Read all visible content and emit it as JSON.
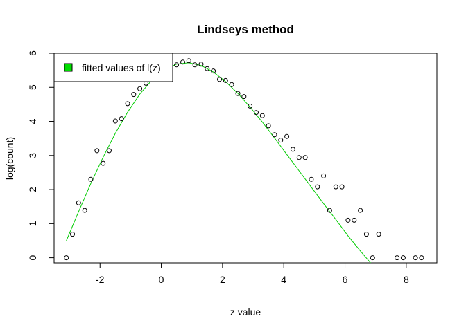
{
  "chart_data": {
    "type": "scatter",
    "title": "Lindseys method",
    "xlabel": "z value",
    "ylabel": "log(count)",
    "xlim": [
      -3.5,
      9.0
    ],
    "ylim": [
      -0.15,
      6.0
    ],
    "xticks": [
      "-2",
      "0",
      "2",
      "4",
      "6",
      "8"
    ],
    "xtick_values": [
      -2,
      0,
      2,
      4,
      6,
      8
    ],
    "yticks": [
      "0",
      "1",
      "2",
      "3",
      "4",
      "5",
      "6"
    ],
    "ytick_values": [
      0,
      1,
      2,
      3,
      4,
      5,
      6
    ],
    "grid": false,
    "legend_position": "top-left",
    "series": [
      {
        "type": "scatter",
        "marker": "open-circle",
        "color": "#000000",
        "points": [
          [
            -3.1,
            0.0
          ],
          [
            -2.9,
            0.69
          ],
          [
            -2.7,
            1.61
          ],
          [
            -2.5,
            1.39
          ],
          [
            -2.3,
            2.3
          ],
          [
            -2.1,
            3.14
          ],
          [
            -1.9,
            2.77
          ],
          [
            -1.7,
            3.14
          ],
          [
            -1.5,
            4.01
          ],
          [
            -1.3,
            4.08
          ],
          [
            -1.1,
            4.52
          ],
          [
            -0.9,
            4.79
          ],
          [
            -0.7,
            4.96
          ],
          [
            -0.5,
            5.12
          ],
          [
            -0.3,
            5.25
          ],
          [
            -0.1,
            5.4
          ],
          [
            0.1,
            5.55
          ],
          [
            0.3,
            5.62
          ],
          [
            0.5,
            5.66
          ],
          [
            0.7,
            5.74
          ],
          [
            0.9,
            5.78
          ],
          [
            1.1,
            5.66
          ],
          [
            1.3,
            5.68
          ],
          [
            1.5,
            5.55
          ],
          [
            1.7,
            5.48
          ],
          [
            1.9,
            5.23
          ],
          [
            2.1,
            5.2
          ],
          [
            2.3,
            5.08
          ],
          [
            2.5,
            4.82
          ],
          [
            2.7,
            4.73
          ],
          [
            2.9,
            4.45
          ],
          [
            3.1,
            4.26
          ],
          [
            3.3,
            4.17
          ],
          [
            3.5,
            3.87
          ],
          [
            3.7,
            3.61
          ],
          [
            3.9,
            3.45
          ],
          [
            4.1,
            3.56
          ],
          [
            4.3,
            3.18
          ],
          [
            4.5,
            2.94
          ],
          [
            4.7,
            2.94
          ],
          [
            4.9,
            2.3
          ],
          [
            5.1,
            2.08
          ],
          [
            5.3,
            2.4
          ],
          [
            5.5,
            1.39
          ],
          [
            5.7,
            2.08
          ],
          [
            5.9,
            2.08
          ],
          [
            6.1,
            1.1
          ],
          [
            6.3,
            1.1
          ],
          [
            6.5,
            1.39
          ],
          [
            6.7,
            0.69
          ],
          [
            6.9,
            0.0
          ],
          [
            7.1,
            0.69
          ],
          [
            7.7,
            0.0
          ],
          [
            7.9,
            0.0
          ],
          [
            8.3,
            0.0
          ],
          [
            8.5,
            0.0
          ]
        ]
      },
      {
        "name": "fitted values of l(z)",
        "type": "line",
        "color": "#00cc00",
        "points": [
          [
            -3.1,
            0.5
          ],
          [
            -2.7,
            1.35
          ],
          [
            -2.3,
            2.18
          ],
          [
            -1.9,
            2.95
          ],
          [
            -1.5,
            3.65
          ],
          [
            -1.1,
            4.27
          ],
          [
            -0.7,
            4.8
          ],
          [
            -0.3,
            5.22
          ],
          [
            0.1,
            5.52
          ],
          [
            0.5,
            5.68
          ],
          [
            0.9,
            5.72
          ],
          [
            1.3,
            5.64
          ],
          [
            1.7,
            5.45
          ],
          [
            2.1,
            5.17
          ],
          [
            2.5,
            4.82
          ],
          [
            2.9,
            4.42
          ],
          [
            3.3,
            3.98
          ],
          [
            3.7,
            3.51
          ],
          [
            4.1,
            3.03
          ],
          [
            4.5,
            2.55
          ],
          [
            4.9,
            2.07
          ],
          [
            5.3,
            1.59
          ],
          [
            5.7,
            1.12
          ],
          [
            6.1,
            0.64
          ],
          [
            6.5,
            0.2
          ],
          [
            6.9,
            -0.22
          ],
          [
            7.3,
            -0.55
          ],
          [
            7.7,
            -0.9
          ]
        ]
      }
    ],
    "legend": [
      {
        "label": "fitted values of l(z)",
        "swatch_color": "#00dd00"
      }
    ]
  }
}
